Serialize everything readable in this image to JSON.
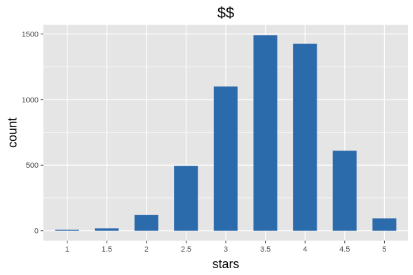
{
  "chart_data": {
    "type": "bar",
    "title": "$$",
    "xlabel": "stars",
    "ylabel": "count",
    "categories": [
      "1",
      "1.5",
      "2",
      "2.5",
      "3",
      "3.5",
      "4",
      "4.5",
      "5"
    ],
    "x": [
      1,
      1.5,
      2,
      2.5,
      3,
      3.5,
      4,
      4.5,
      5
    ],
    "values": [
      8,
      18,
      120,
      495,
      1100,
      1490,
      1425,
      610,
      95
    ],
    "xlim": [
      0.7,
      5.3
    ],
    "ylim": [
      -75,
      1570
    ],
    "yticks": [
      0,
      500,
      1000,
      1500
    ],
    "grid": true,
    "legend": "none",
    "colors": {
      "bar": "#2b6aab",
      "panel_background": "#e5e5e5",
      "grid": "#ffffff"
    }
  }
}
